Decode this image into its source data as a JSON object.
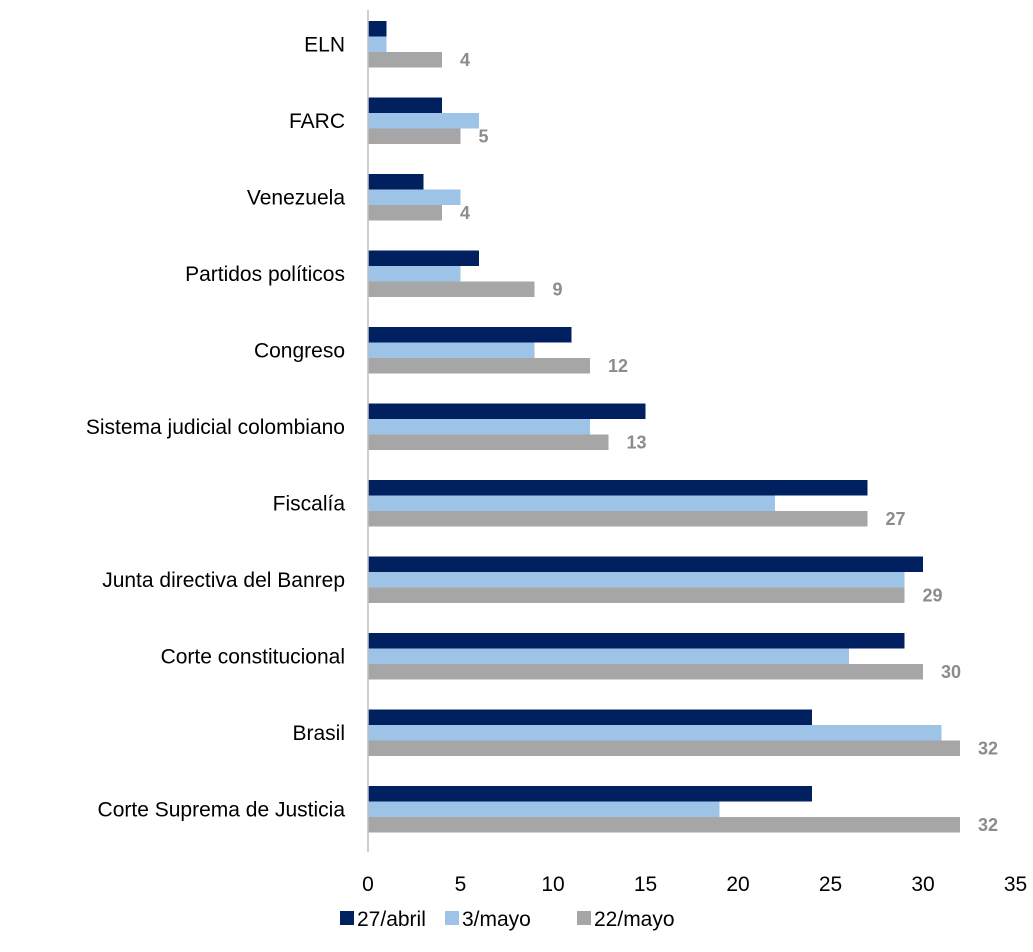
{
  "chart_data": {
    "type": "bar",
    "orientation": "horizontal",
    "categories": [
      "ELN",
      "FARC",
      "Venezuela",
      "Partidos políticos",
      "Congreso",
      "Sistema judicial colombiano",
      "Fiscalía",
      "Junta directiva del Banrep",
      "Corte constitucional",
      "Brasil",
      "Corte Suprema de Justicia"
    ],
    "series": [
      {
        "name": "27/abril",
        "color": "#002060",
        "values": [
          1,
          4,
          3,
          6,
          11,
          15,
          27,
          30,
          29,
          24,
          24
        ]
      },
      {
        "name": "3/mayo",
        "color": "#9dc3e6",
        "values": [
          1,
          6,
          5,
          5,
          9,
          12,
          22,
          29,
          26,
          31,
          19
        ]
      },
      {
        "name": "22/mayo",
        "color": "#a6a6a6",
        "values": [
          4,
          5,
          4,
          9,
          12,
          13,
          27,
          29,
          30,
          32,
          32
        ]
      }
    ],
    "data_labels": {
      "series": "22/mayo",
      "values": [
        "4",
        "5",
        "4",
        "9",
        "12",
        "13",
        "27",
        "29",
        "30",
        "32",
        "32"
      ]
    },
    "xlim": [
      0,
      35
    ],
    "xticks": [
      "0",
      "5",
      "10",
      "15",
      "20",
      "25",
      "30",
      "35"
    ],
    "grid": false,
    "legend_position": "bottom"
  }
}
